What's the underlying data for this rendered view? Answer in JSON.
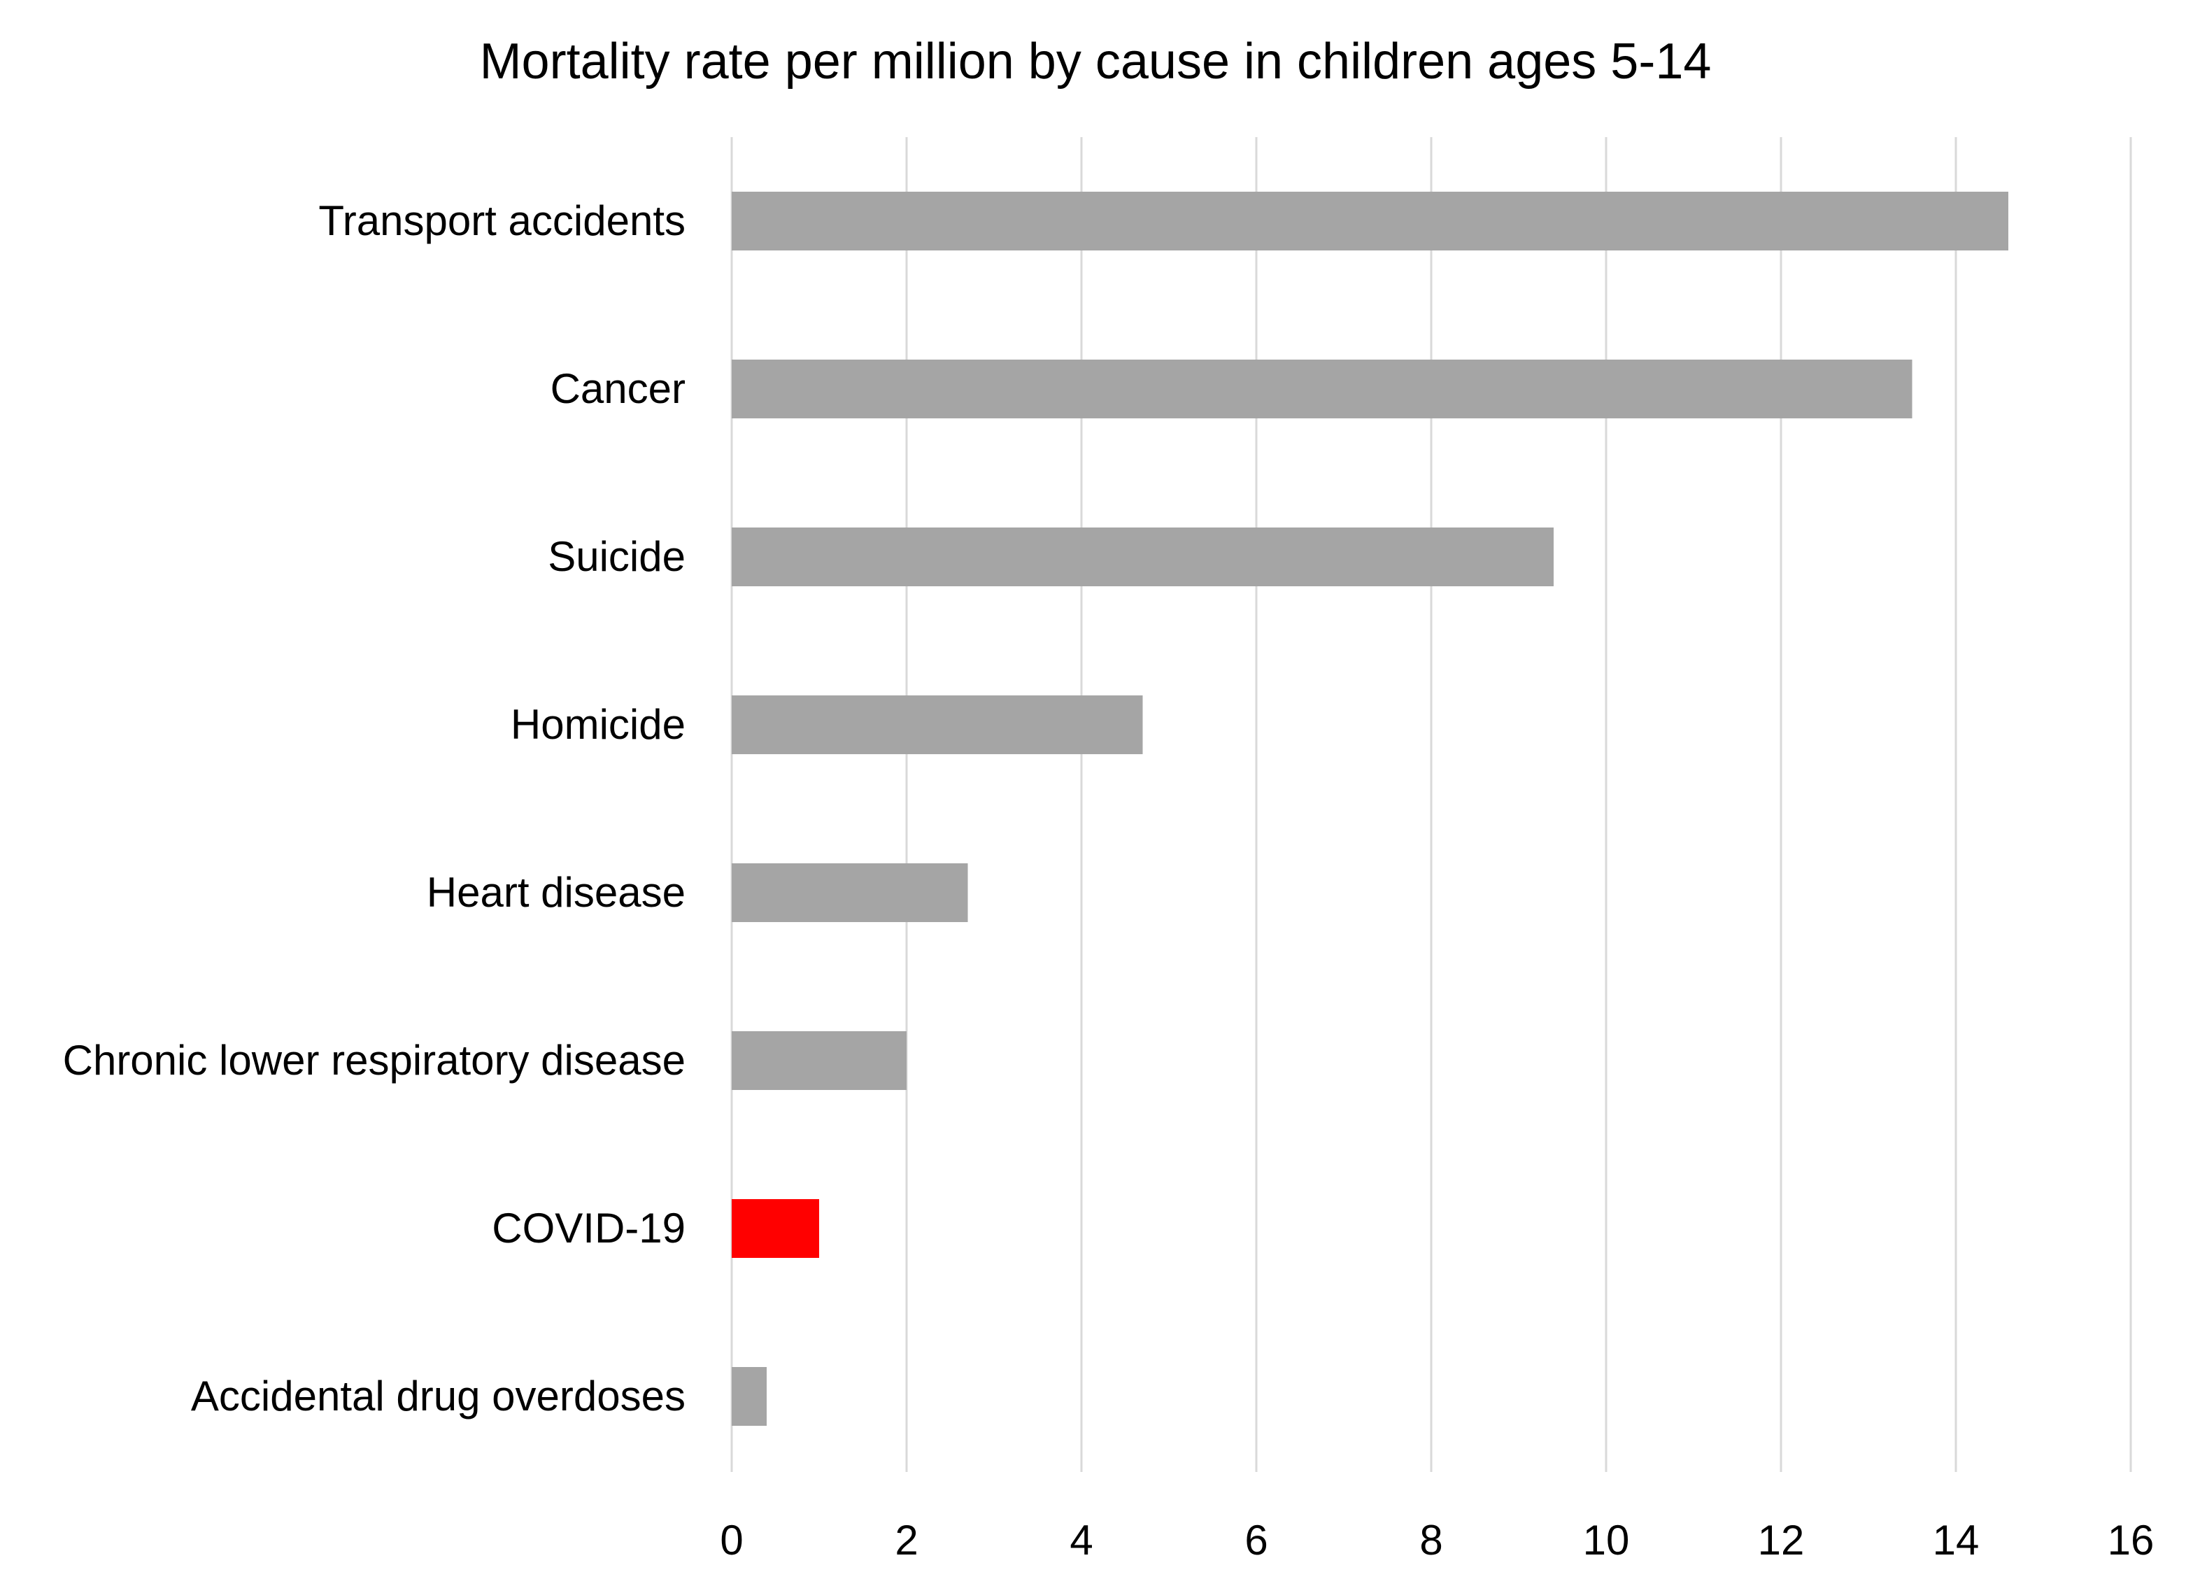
{
  "chart_data": {
    "type": "bar",
    "orientation": "horizontal",
    "title": "Mortality rate per million by cause in children ages 5-14",
    "xlabel": "",
    "ylabel": "",
    "categories": [
      "Transport accidents",
      "Cancer",
      "Suicide",
      "Homicide",
      "Heart disease",
      "Chronic lower respiratory disease",
      "COVID-19",
      "Accidental drug overdoses"
    ],
    "values": [
      14.6,
      13.5,
      9.4,
      4.7,
      2.7,
      2.0,
      1.0,
      0.4
    ],
    "bar_colors": [
      "#a5a5a5",
      "#a5a5a5",
      "#a5a5a5",
      "#a5a5a5",
      "#a5a5a5",
      "#a5a5a5",
      "#ff0000",
      "#a5a5a5"
    ],
    "highlight_category": "COVID-19",
    "xlim": [
      0,
      16
    ],
    "xticks": [
      0,
      2,
      4,
      6,
      8,
      10,
      12,
      14,
      16
    ],
    "xtick_labels": [
      "0",
      "2",
      "4",
      "6",
      "8",
      "10",
      "12",
      "14",
      "16"
    ],
    "grid": "vertical",
    "legend": "none",
    "colors": {
      "default_bar": "#a5a5a5",
      "highlight_bar": "#ff0000",
      "gridline": "#d9d9d9",
      "text": "#000000"
    }
  }
}
